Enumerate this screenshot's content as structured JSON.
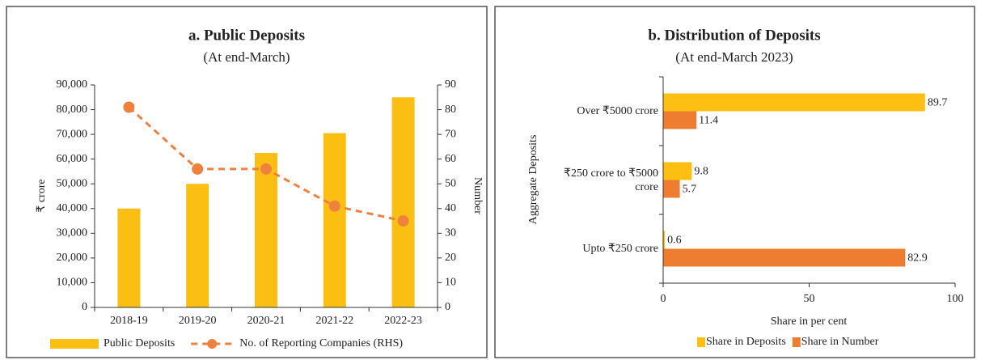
{
  "chart_data": [
    {
      "type": "bar",
      "title": "a. Public Deposits",
      "subtitle": "(At end-March)",
      "ylabel": "₹ crore",
      "y2label": "Number",
      "categories": [
        "2018-19",
        "2019-20",
        "2020-21",
        "2021-22",
        "2022-23"
      ],
      "series": [
        {
          "name": "Public Deposits",
          "color": "#fbbf14",
          "values": [
            40000,
            50000,
            62500,
            70500,
            85000
          ]
        },
        {
          "name": "No. of Reporting Companies (RHS)",
          "color": "#f0813c",
          "type": "line",
          "linestyle": "dashed",
          "axis": "y2",
          "values": [
            81,
            56,
            56,
            41,
            35
          ]
        }
      ],
      "ylim": [
        0,
        90000
      ],
      "yticks": [
        0,
        {
          "value": 10000,
          "label": "10,000"
        },
        {
          "value": 20000,
          "label": "20,000"
        },
        {
          "value": 30000,
          "label": "30,000"
        },
        {
          "value": 40000,
          "label": "40,000"
        },
        {
          "value": 50000,
          "label": "50,000"
        },
        {
          "value": 60000,
          "label": "60,000"
        },
        {
          "value": 70000,
          "label": "70,000"
        },
        {
          "value": 80000,
          "label": "80,000"
        },
        {
          "value": 90000,
          "label": "90,000"
        }
      ],
      "y2lim": [
        0,
        90
      ],
      "y2ticks": [
        0,
        10,
        20,
        30,
        40,
        50,
        60,
        70,
        80,
        90
      ],
      "legend": "bottom"
    },
    {
      "type": "hbar",
      "title": "b. Distribution of Deposits",
      "subtitle": "(At end-March 2023)",
      "ylabel": "Aggregate Deposits",
      "xlabel": "Share in per cent",
      "categories": [
        "Over ₹5000 crore",
        "₹250 crore to ₹5000 crore",
        "Upto ₹250 crore"
      ],
      "series": [
        {
          "name": "Share in Deposits",
          "color": "#fdbf12",
          "values": [
            89.7,
            9.8,
            0.6
          ]
        },
        {
          "name": "Share in Number",
          "color": "#ee7d31",
          "values": [
            11.4,
            5.7,
            82.9
          ]
        }
      ],
      "xlim": [
        0,
        100
      ],
      "xticks": [
        0,
        50,
        100
      ],
      "legend": "bottom"
    }
  ]
}
